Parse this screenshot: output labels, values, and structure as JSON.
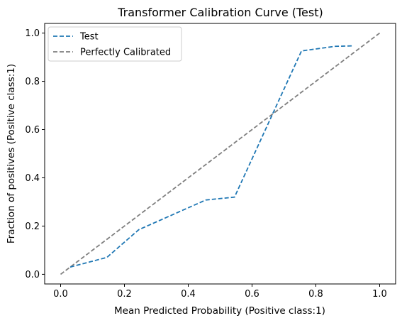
{
  "chart_data": {
    "type": "line",
    "title": "Transformer Calibration Curve (Test)",
    "xlabel": "Mean Predicted Probability (Positive class:1)",
    "ylabel": "Fraction of positives (Positive class:1)",
    "xlim": [
      -0.05,
      1.05
    ],
    "ylim": [
      -0.04,
      1.04
    ],
    "xticks": [
      0.0,
      0.2,
      0.4,
      0.6,
      0.8,
      1.0
    ],
    "xtick_labels": [
      "0.0",
      "0.2",
      "0.4",
      "0.6",
      "0.8",
      "1.0"
    ],
    "yticks": [
      0.0,
      0.2,
      0.4,
      0.6,
      0.8,
      1.0
    ],
    "ytick_labels": [
      "0.0",
      "0.2",
      "0.4",
      "0.6",
      "0.8",
      "1.0"
    ],
    "grid": false,
    "legend_position": "top-left",
    "series": [
      {
        "name": "Test",
        "color": "#1f77b4",
        "style": "dashed",
        "x": [
          0.03,
          0.145,
          0.245,
          0.455,
          0.545,
          0.755,
          0.86,
          0.915
        ],
        "y": [
          0.03,
          0.07,
          0.185,
          0.308,
          0.32,
          0.926,
          0.945,
          0.947
        ]
      },
      {
        "name": "Perfectly Calibrated",
        "color": "#7f7f7f",
        "style": "dashed",
        "x": [
          0.0,
          1.0
        ],
        "y": [
          0.0,
          1.0
        ]
      }
    ]
  }
}
